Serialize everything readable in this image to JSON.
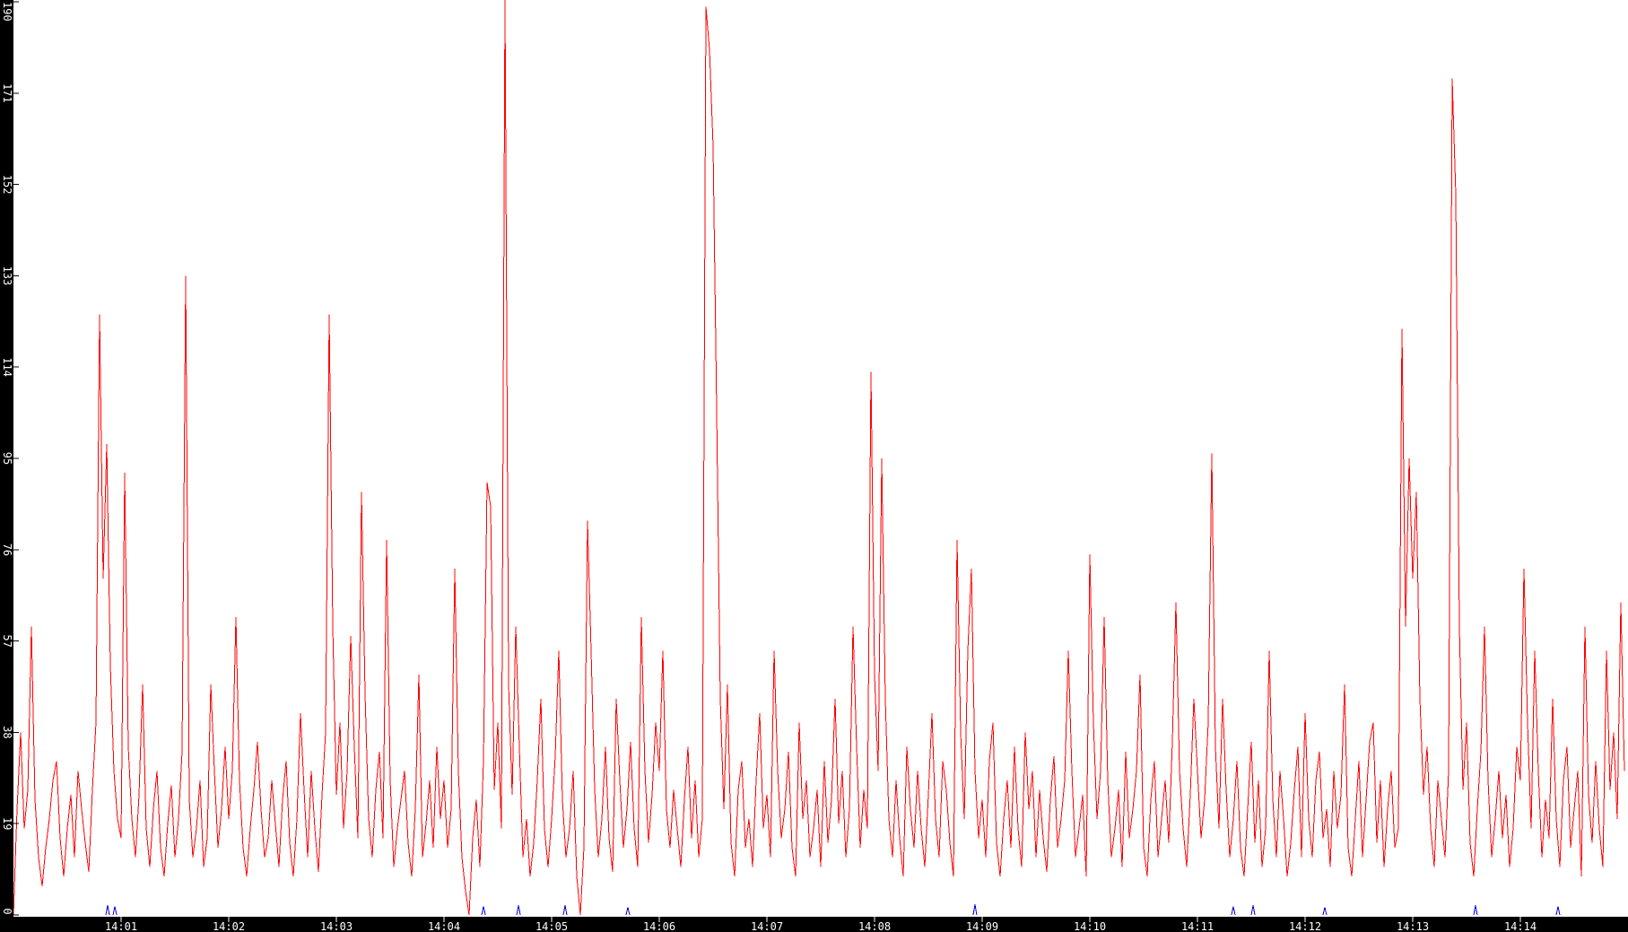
{
  "page": {
    "background_color": "#ffffff",
    "axis_bar_color": "#000000",
    "axis_label_color": "#ffffff",
    "y_tick_color": "#000000",
    "x_tick_color": "#ffffff"
  },
  "chart_data": {
    "type": "line",
    "title": "",
    "xlabel": "",
    "ylabel": "",
    "grid": false,
    "legend": false,
    "x_axis": {
      "start": "14:00",
      "end": "14:15",
      "tick_interval": "1 minute",
      "tick_labels": [
        "14:01",
        "14:02",
        "14:03",
        "14:04",
        "14:05",
        "14:06",
        "14:07",
        "14:08",
        "14:09",
        "14:10",
        "14:11",
        "14:12",
        "14:13",
        "14:14"
      ]
    },
    "y_axis": {
      "min": 0,
      "max": 190,
      "ticks": [
        0,
        19,
        38,
        57,
        76,
        95,
        114,
        133,
        152,
        171,
        190
      ],
      "tick_labels": [
        "0",
        "19",
        "38",
        "57",
        "76",
        "95",
        "114",
        "133",
        "152",
        "171",
        "190"
      ]
    },
    "series": [
      {
        "name": "primary-red-series",
        "color": "#ff0000",
        "t0_min": 0,
        "dt_min": 0.033333,
        "values": [
          0,
          22,
          38,
          18,
          26,
          60,
          24,
          12,
          6,
          14,
          20,
          28,
          32,
          16,
          8,
          18,
          25,
          12,
          30,
          22,
          15,
          9,
          26,
          40,
          125,
          70,
          98,
          52,
          30,
          20,
          16,
          92,
          35,
          20,
          12,
          25,
          48,
          18,
          10,
          22,
          30,
          14,
          8,
          19,
          27,
          12,
          20,
          34,
          133,
          24,
          12,
          18,
          28,
          10,
          16,
          48,
          30,
          14,
          22,
          35,
          20,
          30,
          62,
          28,
          14,
          8,
          18,
          26,
          36,
          22,
          12,
          16,
          28,
          19,
          10,
          24,
          32,
          15,
          8,
          20,
          42,
          26,
          12,
          30,
          18,
          9,
          25,
          38,
          125,
          60,
          25,
          40,
          18,
          30,
          58,
          35,
          16,
          88,
          46,
          20,
          12,
          26,
          34,
          16,
          78,
          28,
          10,
          18,
          24,
          30,
          15,
          8,
          22,
          50,
          12,
          19,
          28,
          14,
          35,
          20,
          28,
          14,
          22,
          72,
          30,
          12,
          5,
          0,
          16,
          24,
          10,
          32,
          90,
          85,
          26,
          40,
          18,
          195,
          48,
          25,
          60,
          35,
          12,
          20,
          8,
          15,
          28,
          45,
          18,
          10,
          20,
          33,
          55,
          24,
          12,
          18,
          30,
          8,
          0,
          14,
          82,
          55,
          26,
          12,
          20,
          35,
          16,
          9,
          45,
          28,
          14,
          22,
          36,
          18,
          10,
          62,
          30,
          15,
          25,
          40,
          30,
          55,
          22,
          14,
          26,
          18,
          10,
          24,
          35,
          16,
          28,
          12,
          20,
          189,
          180,
          160,
          105,
          45,
          22,
          48,
          15,
          8,
          26,
          32,
          14,
          20,
          10,
          28,
          42,
          18,
          25,
          12,
          55,
          30,
          16,
          22,
          34,
          14,
          8,
          40,
          20,
          28,
          12,
          18,
          26,
          10,
          32,
          15,
          24,
          45,
          19,
          30,
          12,
          22,
          60,
          35,
          14,
          26,
          18,
          113,
          50,
          30,
          95,
          45,
          20,
          12,
          28,
          16,
          8,
          35,
          22,
          14,
          30,
          18,
          10,
          25,
          42,
          20,
          12,
          32,
          26,
          15,
          8,
          78,
          38,
          20,
          55,
          72,
          30,
          16,
          24,
          12,
          32,
          40,
          15,
          8,
          20,
          28,
          14,
          35,
          18,
          10,
          38,
          22,
          30,
          12,
          26,
          16,
          9,
          24,
          33,
          14,
          20,
          28,
          55,
          30,
          12,
          18,
          25,
          8,
          75,
          40,
          20,
          30,
          62,
          28,
          12,
          18,
          26,
          10,
          34,
          16,
          22,
          30,
          50,
          14,
          8,
          24,
          32,
          12,
          20,
          28,
          15,
          36,
          65,
          30,
          18,
          10,
          25,
          45,
          30,
          16,
          24,
          40,
          96,
          35,
          18,
          45,
          26,
          12,
          20,
          32,
          14,
          8,
          22,
          36,
          15,
          28,
          10,
          18,
          55,
          24,
          12,
          30,
          20,
          8,
          15,
          26,
          35,
          12,
          42,
          20,
          12,
          28,
          34,
          16,
          22,
          10,
          30,
          18,
          25,
          48,
          14,
          8,
          20,
          32,
          12,
          24,
          36,
          40,
          15,
          28,
          10,
          22,
          30,
          14,
          18,
          122,
          60,
          95,
          70,
          88,
          45,
          25,
          35,
          18,
          10,
          28,
          20,
          12,
          30,
          174,
          150,
          60,
          26,
          40,
          15,
          8,
          22,
          34,
          60,
          28,
          12,
          20,
          30,
          16,
          25,
          10,
          18,
          35,
          28,
          72,
          40,
          18,
          55,
          30,
          12,
          24,
          16,
          45,
          20,
          10,
          28,
          35,
          14,
          22,
          30,
          8,
          60,
          25,
          15,
          32,
          18,
          10,
          55,
          26,
          38,
          20,
          65,
          30
        ]
      },
      {
        "name": "secondary-blue-spikes",
        "color": "#0000dd",
        "baseline": 0,
        "points": [
          {
            "t": 0.875,
            "v": 2.0
          },
          {
            "t": 0.942,
            "v": 1.8
          },
          {
            "t": 4.367,
            "v": 1.8
          },
          {
            "t": 4.692,
            "v": 2.0
          },
          {
            "t": 5.125,
            "v": 2.0
          },
          {
            "t": 5.708,
            "v": 1.6
          },
          {
            "t": 8.933,
            "v": 2.2
          },
          {
            "t": 11.333,
            "v": 1.8
          },
          {
            "t": 11.517,
            "v": 2.0
          },
          {
            "t": 12.183,
            "v": 1.6
          },
          {
            "t": 13.583,
            "v": 2.0
          },
          {
            "t": 14.35,
            "v": 1.8
          }
        ]
      }
    ]
  }
}
